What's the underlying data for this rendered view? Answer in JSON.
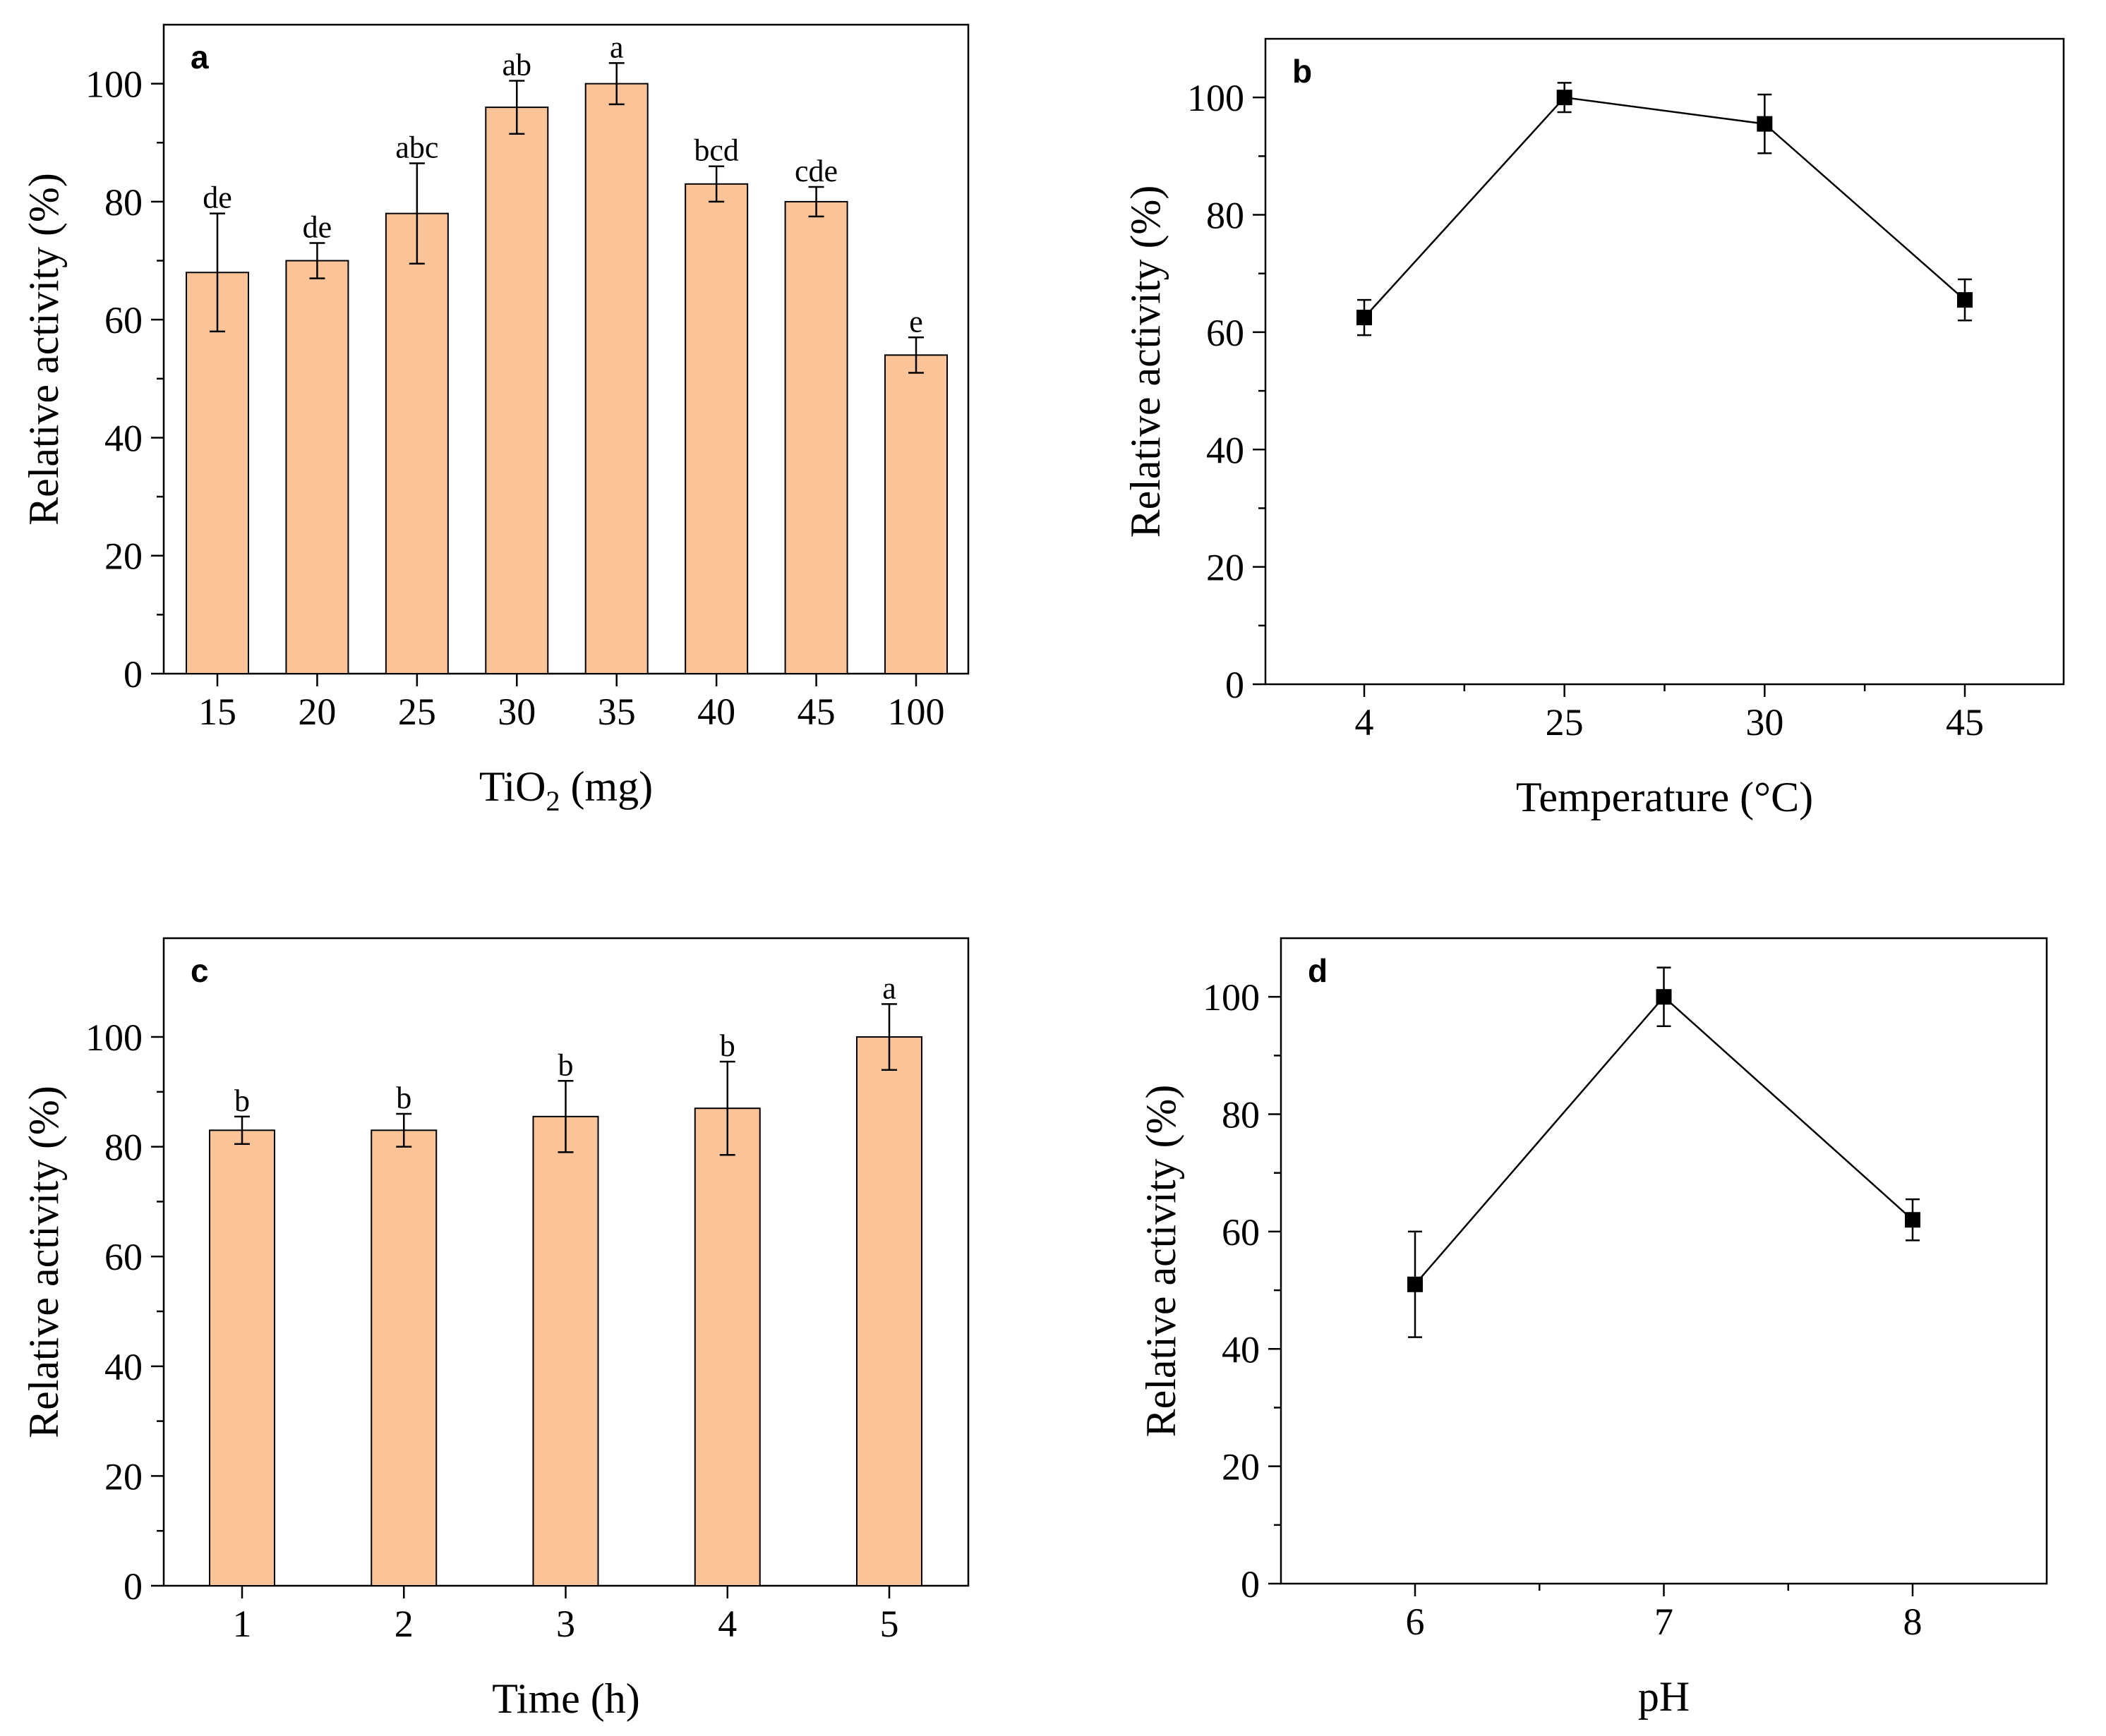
{
  "chart_data": [
    {
      "panel": "a",
      "type": "bar",
      "xlabel_main": "TiO",
      "xlabel_sub": "2",
      "xlabel_tail": " (mg)",
      "ylabel": "Relative activity (%)",
      "categories": [
        "15",
        "20",
        "25",
        "30",
        "35",
        "40",
        "45",
        "100"
      ],
      "values": [
        68,
        70,
        78,
        96,
        100,
        83,
        80,
        54
      ],
      "errors": [
        10,
        3,
        8.5,
        4.5,
        3.5,
        3,
        2.5,
        3
      ],
      "significance": [
        "de",
        "de",
        "abc",
        "ab",
        "a",
        "bcd",
        "cde",
        "e"
      ],
      "ylim": [
        0,
        110
      ],
      "yticks": [
        0,
        20,
        40,
        60,
        80,
        100
      ]
    },
    {
      "panel": "b",
      "type": "line",
      "xlabel": "Temperature (°C)",
      "ylabel": "Relative activity (%)",
      "categories": [
        "4",
        "25",
        "30",
        "45"
      ],
      "values": [
        62.5,
        100,
        95.5,
        65.5
      ],
      "errors": [
        3,
        2.5,
        5,
        3.5
      ],
      "ylim": [
        0,
        110
      ],
      "yticks": [
        0,
        20,
        40,
        60,
        80,
        100
      ]
    },
    {
      "panel": "c",
      "type": "bar",
      "xlabel": "Time (h)",
      "ylabel": "Relative activity (%)",
      "categories": [
        "1",
        "2",
        "3",
        "4",
        "5"
      ],
      "values": [
        83,
        83,
        85.5,
        87,
        100
      ],
      "errors": [
        2.5,
        3,
        6.5,
        8.5,
        6
      ],
      "significance": [
        "b",
        "b",
        "b",
        "b",
        "a"
      ],
      "ylim": [
        0,
        118
      ],
      "yticks": [
        0,
        20,
        40,
        60,
        80,
        100
      ]
    },
    {
      "panel": "d",
      "type": "line",
      "xlabel": "pH",
      "ylabel": "Relative activity (%)",
      "categories": [
        "6",
        "7",
        "8"
      ],
      "values": [
        51,
        100,
        62
      ],
      "errors": [
        9,
        5,
        3.5
      ],
      "ylim": [
        0,
        110
      ],
      "yticks": [
        0,
        20,
        40,
        60,
        80,
        100
      ]
    }
  ],
  "colors": {
    "bar_fill": "#FAC498",
    "stroke": "#000000"
  }
}
